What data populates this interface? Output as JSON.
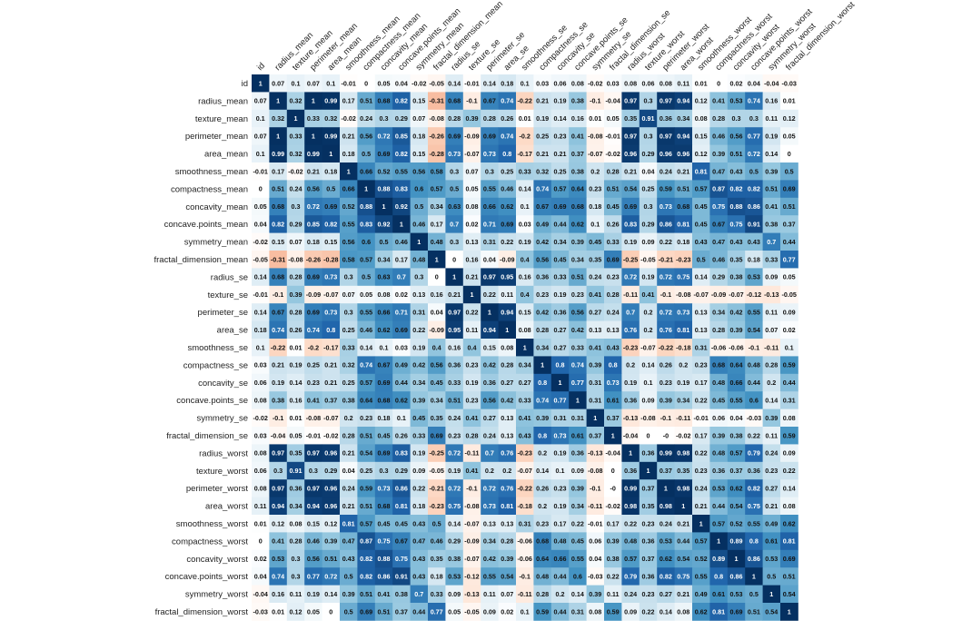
{
  "chart_data": {
    "type": "heatmap",
    "title": "",
    "colorscale": {
      "negative": "#b2182b",
      "zero": "#ffffff",
      "positive": "#053061"
    },
    "labels": [
      "id",
      "radius_mean",
      "texture_mean",
      "perimeter_mean",
      "area_mean",
      "smoothness_mean",
      "compactness_mean",
      "concavity_mean",
      "concave.points_mean",
      "symmetry_mean",
      "fractal_dimension_mean",
      "radius_se",
      "texture_se",
      "perimeter_se",
      "area_se",
      "smoothness_se",
      "compactness_se",
      "concavity_se",
      "concave.points_se",
      "symmetry_se",
      "fractal_dimension_se",
      "radius_worst",
      "texture_worst",
      "perimeter_worst",
      "area_worst",
      "smoothness_worst",
      "compactness_worst",
      "concavity_worst",
      "concave.points_worst",
      "symmetry_worst",
      "fractal_dimension_worst"
    ],
    "matrix": [
      [
        1,
        0.07,
        0.1,
        0.07,
        0.1,
        -0.01,
        0,
        0.05,
        0.04,
        -0.02,
        -0.05,
        0.14,
        -0.01,
        0.14,
        0.18,
        0.1,
        0.03,
        0.06,
        0.08,
        -0.02,
        0.03,
        0.08,
        0.06,
        0.08,
        0.11,
        0.01,
        0,
        0.02,
        0.04,
        -0.04,
        -0.03
      ],
      [
        0.07,
        1,
        0.32,
        1,
        0.99,
        0.17,
        0.51,
        0.68,
        0.82,
        0.15,
        -0.31,
        0.68,
        -0.1,
        0.67,
        0.74,
        -0.22,
        0.21,
        0.19,
        0.38,
        -0.1,
        -0.04,
        0.97,
        0.3,
        0.97,
        0.94,
        0.12,
        0.41,
        0.53,
        0.74,
        0.16,
        0.01
      ],
      [
        0.1,
        0.32,
        1,
        0.33,
        0.32,
        -0.02,
        0.24,
        0.3,
        0.29,
        0.07,
        -0.08,
        0.28,
        0.39,
        0.28,
        0.26,
        0.01,
        0.19,
        0.14,
        0.16,
        0.01,
        0.05,
        0.35,
        0.91,
        0.36,
        0.34,
        0.08,
        0.28,
        0.3,
        0.3,
        0.11,
        0.12
      ],
      [
        0.07,
        1,
        0.33,
        1,
        0.99,
        0.21,
        0.56,
        0.72,
        0.85,
        0.18,
        -0.26,
        0.69,
        -0.09,
        0.69,
        0.74,
        -0.2,
        0.25,
        0.23,
        0.41,
        -0.08,
        -0.01,
        0.97,
        0.3,
        0.97,
        0.94,
        0.15,
        0.46,
        0.56,
        0.77,
        0.19,
        0.05
      ],
      [
        0.1,
        0.99,
        0.32,
        0.99,
        1,
        0.18,
        0.5,
        0.69,
        0.82,
        0.15,
        -0.28,
        0.73,
        -0.07,
        0.73,
        0.8,
        -0.17,
        0.21,
        0.21,
        0.37,
        -0.07,
        -0.02,
        0.96,
        0.29,
        0.96,
        0.96,
        0.12,
        0.39,
        0.51,
        0.72,
        0.14,
        0
      ],
      [
        -0.01,
        0.17,
        -0.02,
        0.21,
        0.18,
        1,
        0.66,
        0.52,
        0.55,
        0.56,
        0.58,
        0.3,
        0.07,
        0.3,
        0.25,
        0.33,
        0.32,
        0.25,
        0.38,
        0.2,
        0.28,
        0.21,
        0.04,
        0.24,
        0.21,
        0.81,
        0.47,
        0.43,
        0.5,
        0.39,
        0.5
      ],
      [
        0,
        0.51,
        0.24,
        0.56,
        0.5,
        0.66,
        1,
        0.88,
        0.83,
        0.6,
        0.57,
        0.5,
        0.05,
        0.55,
        0.46,
        0.14,
        0.74,
        0.57,
        0.64,
        0.23,
        0.51,
        0.54,
        0.25,
        0.59,
        0.51,
        0.57,
        0.87,
        0.82,
        0.82,
        0.51,
        0.69
      ],
      [
        0.05,
        0.68,
        0.3,
        0.72,
        0.69,
        0.52,
        0.88,
        1,
        0.92,
        0.5,
        0.34,
        0.63,
        0.08,
        0.66,
        0.62,
        0.1,
        0.67,
        0.69,
        0.68,
        0.18,
        0.45,
        0.69,
        0.3,
        0.73,
        0.68,
        0.45,
        0.75,
        0.88,
        0.86,
        0.41,
        0.51
      ],
      [
        0.04,
        0.82,
        0.29,
        0.85,
        0.82,
        0.55,
        0.83,
        0.92,
        1,
        0.46,
        0.17,
        0.7,
        0.02,
        0.71,
        0.69,
        0.03,
        0.49,
        0.44,
        0.62,
        0.1,
        0.26,
        0.83,
        0.29,
        0.86,
        0.81,
        0.45,
        0.67,
        0.75,
        0.91,
        0.38,
        0.37
      ],
      [
        -0.02,
        0.15,
        0.07,
        0.18,
        0.15,
        0.56,
        0.6,
        0.5,
        0.46,
        1,
        0.48,
        0.3,
        0.13,
        0.31,
        0.22,
        0.19,
        0.42,
        0.34,
        0.39,
        0.45,
        0.33,
        0.19,
        0.09,
        0.22,
        0.18,
        0.43,
        0.47,
        0.43,
        0.43,
        0.7,
        0.44
      ],
      [
        -0.05,
        -0.31,
        -0.08,
        -0.26,
        -0.28,
        0.58,
        0.57,
        0.34,
        0.17,
        0.48,
        1,
        0,
        0.16,
        0.04,
        -0.09,
        0.4,
        0.56,
        0.45,
        0.34,
        0.35,
        0.69,
        -0.25,
        -0.05,
        -0.21,
        -0.23,
        0.5,
        0.46,
        0.35,
        0.18,
        0.33,
        0.77
      ],
      [
        0.14,
        0.68,
        0.28,
        0.69,
        0.73,
        0.3,
        0.5,
        0.63,
        0.7,
        0.3,
        0,
        1,
        0.21,
        0.97,
        0.95,
        0.16,
        0.36,
        0.33,
        0.51,
        0.24,
        0.23,
        0.72,
        0.19,
        0.72,
        0.75,
        0.14,
        0.29,
        0.38,
        0.53,
        0.09,
        0.05
      ],
      [
        -0.01,
        -0.1,
        0.39,
        -0.09,
        -0.07,
        0.07,
        0.05,
        0.08,
        0.02,
        0.13,
        0.16,
        0.21,
        1,
        0.22,
        0.11,
        0.4,
        0.23,
        0.19,
        0.23,
        0.41,
        0.28,
        -0.11,
        0.41,
        -0.1,
        -0.08,
        -0.07,
        -0.09,
        -0.07,
        -0.12,
        -0.13,
        -0.05
      ],
      [
        0.14,
        0.67,
        0.28,
        0.69,
        0.73,
        0.3,
        0.55,
        0.66,
        0.71,
        0.31,
        0.04,
        0.97,
        0.22,
        1,
        0.94,
        0.15,
        0.42,
        0.36,
        0.56,
        0.27,
        0.24,
        0.7,
        0.2,
        0.72,
        0.73,
        0.13,
        0.34,
        0.42,
        0.55,
        0.11,
        0.09
      ],
      [
        0.18,
        0.74,
        0.26,
        0.74,
        0.8,
        0.25,
        0.46,
        0.62,
        0.69,
        0.22,
        -0.09,
        0.95,
        0.11,
        0.94,
        1,
        0.08,
        0.28,
        0.27,
        0.42,
        0.13,
        0.13,
        0.76,
        0.2,
        0.76,
        0.81,
        0.13,
        0.28,
        0.39,
        0.54,
        0.07,
        0.02
      ],
      [
        0.1,
        -0.22,
        0.01,
        -0.2,
        -0.17,
        0.33,
        0.14,
        0.1,
        0.03,
        0.19,
        0.4,
        0.16,
        0.4,
        0.15,
        0.08,
        1,
        0.34,
        0.27,
        0.33,
        0.41,
        0.43,
        -0.23,
        -0.07,
        -0.22,
        -0.18,
        0.31,
        -0.06,
        -0.06,
        -0.1,
        -0.11,
        0.1
      ],
      [
        0.03,
        0.21,
        0.19,
        0.25,
        0.21,
        0.32,
        0.74,
        0.67,
        0.49,
        0.42,
        0.56,
        0.36,
        0.23,
        0.42,
        0.28,
        0.34,
        1,
        0.8,
        0.74,
        0.39,
        0.8,
        0.2,
        0.14,
        0.26,
        0.2,
        0.23,
        0.68,
        0.64,
        0.48,
        0.28,
        0.59
      ],
      [
        0.06,
        0.19,
        0.14,
        0.23,
        0.21,
        0.25,
        0.57,
        0.69,
        0.44,
        0.34,
        0.45,
        0.33,
        0.19,
        0.36,
        0.27,
        0.27,
        0.8,
        1,
        0.77,
        0.31,
        0.73,
        0.19,
        0.1,
        0.23,
        0.19,
        0.17,
        0.48,
        0.66,
        0.44,
        0.2,
        0.44
      ],
      [
        0.08,
        0.38,
        0.16,
        0.41,
        0.37,
        0.38,
        0.64,
        0.68,
        0.62,
        0.39,
        0.34,
        0.51,
        0.23,
        0.56,
        0.42,
        0.33,
        0.74,
        0.77,
        1,
        0.31,
        0.61,
        0.36,
        0.09,
        0.39,
        0.34,
        0.22,
        0.45,
        0.55,
        0.6,
        0.14,
        0.31
      ],
      [
        -0.02,
        -0.1,
        0.01,
        -0.08,
        -0.07,
        0.2,
        0.23,
        0.18,
        0.1,
        0.45,
        0.35,
        0.24,
        0.41,
        0.27,
        0.13,
        0.41,
        0.39,
        0.31,
        0.31,
        1,
        0.37,
        -0.13,
        -0.08,
        -0.1,
        -0.11,
        -0.01,
        0.06,
        0.04,
        -0.03,
        0.39,
        0.08
      ],
      [
        0.03,
        -0.04,
        0.05,
        -0.01,
        -0.02,
        0.28,
        0.51,
        0.45,
        0.26,
        0.33,
        0.69,
        0.23,
        0.28,
        0.24,
        0.13,
        0.43,
        0.8,
        0.73,
        0.61,
        0.37,
        1,
        -0.04,
        0,
        -0.0,
        -0.02,
        0.17,
        0.39,
        0.38,
        0.22,
        0.11,
        0.59
      ],
      [
        0.08,
        0.97,
        0.35,
        0.97,
        0.96,
        0.21,
        0.54,
        0.69,
        0.83,
        0.19,
        -0.25,
        0.72,
        -0.11,
        0.7,
        0.76,
        -0.23,
        0.2,
        0.19,
        0.36,
        -0.13,
        -0.04,
        1,
        0.36,
        0.99,
        0.98,
        0.22,
        0.48,
        0.57,
        0.79,
        0.24,
        0.09
      ],
      [
        0.06,
        0.3,
        0.91,
        0.3,
        0.29,
        0.04,
        0.25,
        0.3,
        0.29,
        0.09,
        -0.05,
        0.19,
        0.41,
        0.2,
        0.2,
        -0.07,
        0.14,
        0.1,
        0.09,
        -0.08,
        0,
        0.36,
        1,
        0.37,
        0.35,
        0.23,
        0.36,
        0.37,
        0.36,
        0.23,
        0.22
      ],
      [
        0.08,
        0.97,
        0.36,
        0.97,
        0.96,
        0.24,
        0.59,
        0.73,
        0.86,
        0.22,
        -0.21,
        0.72,
        -0.1,
        0.72,
        0.76,
        -0.22,
        0.26,
        0.23,
        0.39,
        -0.1,
        0,
        0.99,
        0.37,
        1,
        0.98,
        0.24,
        0.53,
        0.62,
        0.82,
        0.27,
        0.14
      ],
      [
        0.11,
        0.94,
        0.34,
        0.94,
        0.96,
        0.21,
        0.51,
        0.68,
        0.81,
        0.18,
        -0.23,
        0.75,
        -0.08,
        0.73,
        0.81,
        -0.18,
        0.2,
        0.19,
        0.34,
        -0.11,
        -0.02,
        0.98,
        0.35,
        0.98,
        1,
        0.21,
        0.44,
        0.54,
        0.75,
        0.21,
        0.08
      ],
      [
        0.01,
        0.12,
        0.08,
        0.15,
        0.12,
        0.81,
        0.57,
        0.45,
        0.45,
        0.43,
        0.5,
        0.14,
        -0.07,
        0.13,
        0.13,
        0.31,
        0.23,
        0.17,
        0.22,
        -0.01,
        0.17,
        0.22,
        0.23,
        0.24,
        0.21,
        1,
        0.57,
        0.52,
        0.55,
        0.49,
        0.62
      ],
      [
        0,
        0.41,
        0.28,
        0.46,
        0.39,
        0.47,
        0.87,
        0.75,
        0.67,
        0.47,
        0.46,
        0.29,
        -0.09,
        0.34,
        0.28,
        -0.06,
        0.68,
        0.48,
        0.45,
        0.06,
        0.39,
        0.48,
        0.36,
        0.53,
        0.44,
        0.57,
        1,
        0.89,
        0.8,
        0.61,
        0.81
      ],
      [
        0.02,
        0.53,
        0.3,
        0.56,
        0.51,
        0.43,
        0.82,
        0.88,
        0.75,
        0.43,
        0.35,
        0.38,
        -0.07,
        0.42,
        0.39,
        -0.06,
        0.64,
        0.66,
        0.55,
        0.04,
        0.38,
        0.57,
        0.37,
        0.62,
        0.54,
        0.52,
        0.89,
        1,
        0.86,
        0.53,
        0.69
      ],
      [
        0.04,
        0.74,
        0.3,
        0.77,
        0.72,
        0.5,
        0.82,
        0.86,
        0.91,
        0.43,
        0.18,
        0.53,
        -0.12,
        0.55,
        0.54,
        -0.1,
        0.48,
        0.44,
        0.6,
        -0.03,
        0.22,
        0.79,
        0.36,
        0.82,
        0.75,
        0.55,
        0.8,
        0.86,
        1,
        0.5,
        0.51
      ],
      [
        -0.04,
        0.16,
        0.11,
        0.19,
        0.14,
        0.39,
        0.51,
        0.41,
        0.38,
        0.7,
        0.33,
        0.09,
        -0.13,
        0.11,
        0.07,
        -0.11,
        0.28,
        0.2,
        0.14,
        0.39,
        0.11,
        0.24,
        0.23,
        0.27,
        0.21,
        0.49,
        0.61,
        0.53,
        0.5,
        1,
        0.54
      ],
      [
        -0.03,
        0.01,
        0.12,
        0.05,
        0,
        0.5,
        0.69,
        0.51,
        0.37,
        0.44,
        0.77,
        0.05,
        -0.05,
        0.09,
        0.02,
        0.1,
        0.59,
        0.44,
        0.31,
        0.08,
        0.59,
        0.09,
        0.22,
        0.14,
        0.08,
        0.62,
        0.81,
        0.69,
        0.51,
        0.54,
        1
      ]
    ]
  }
}
